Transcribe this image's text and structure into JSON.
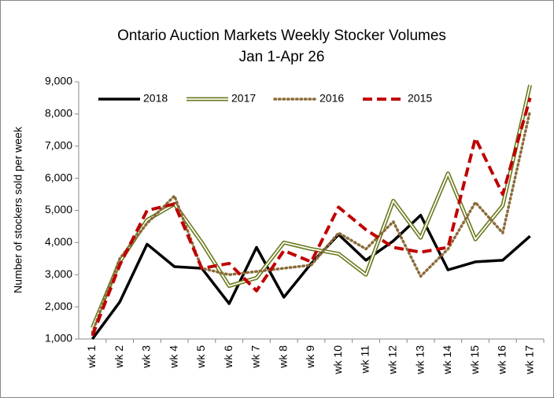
{
  "chart_data": {
    "type": "line",
    "title": "Ontario Auction Markets Weekly Stocker Volumes",
    "subtitle": "Jan 1-Apr 26",
    "y_label": "Number of stockers sold per week",
    "categories": [
      "wk 1",
      "wk 2",
      "wk 3",
      "wk 4",
      "wk 5",
      "wk 6",
      "wk 7",
      "wk 8",
      "wk 9",
      "wk 10",
      "wk 11",
      "wk 12",
      "wk 13",
      "wk 14",
      "wk 15",
      "wk 16",
      "wk 17"
    ],
    "series": [
      {
        "name": "2018",
        "color": "#000000",
        "style": "solid",
        "values": [
          1000,
          2150,
          3950,
          3250,
          3200,
          2100,
          3850,
          2300,
          3350,
          4250,
          3450,
          4050,
          4850,
          3150,
          3400,
          3450,
          4200
        ]
      },
      {
        "name": "2017",
        "color": "#6b7a1e",
        "style": "double",
        "values": [
          1350,
          3400,
          4700,
          5200,
          4000,
          2650,
          2900,
          4000,
          3800,
          3650,
          3000,
          5300,
          4150,
          6150,
          4100,
          5150,
          8900
        ]
      },
      {
        "name": "2016",
        "color": "#8b6b3a",
        "style": "dotted",
        "values": [
          1200,
          3500,
          4600,
          5450,
          3200,
          3000,
          3100,
          3200,
          3300,
          4300,
          3800,
          4650,
          2950,
          3800,
          5250,
          4300,
          8100
        ]
      },
      {
        "name": "2015",
        "color": "#c00000",
        "style": "dashed",
        "values": [
          1100,
          3300,
          5000,
          5200,
          3200,
          3350,
          2500,
          3750,
          3400,
          5100,
          4400,
          3850,
          3700,
          3850,
          7250,
          5500,
          8500
        ]
      }
    ],
    "ylim": [
      1000,
      9000
    ],
    "yticks": [
      {
        "value": 1000,
        "label": "1,000"
      },
      {
        "value": 2000,
        "label": "2,000"
      },
      {
        "value": 3000,
        "label": "3,000"
      },
      {
        "value": 4000,
        "label": "4,000"
      },
      {
        "value": 5000,
        "label": "5,000"
      },
      {
        "value": 6000,
        "label": "6,000"
      },
      {
        "value": 7000,
        "label": "7,000"
      },
      {
        "value": 8000,
        "label": "8,000"
      },
      {
        "value": 9000,
        "label": "9,000"
      }
    ],
    "grid": false,
    "legend": "top"
  }
}
